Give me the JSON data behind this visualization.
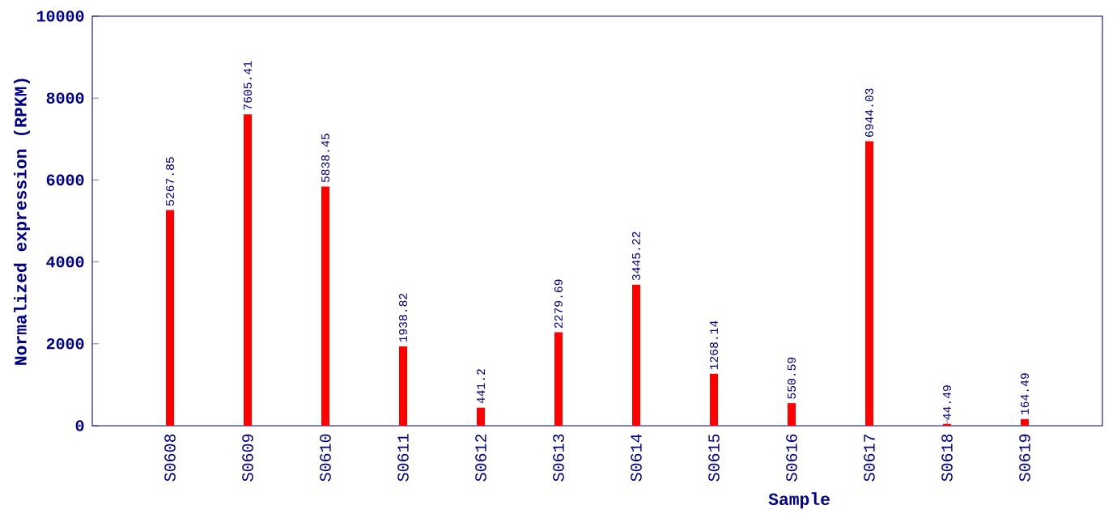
{
  "chart_data": {
    "type": "bar",
    "xlabel": "Sample",
    "ylabel": "Normalized expression (RPKM)",
    "categories": [
      "S0608",
      "S0609",
      "S0610",
      "S0611",
      "S0612",
      "S0613",
      "S0614",
      "S0615",
      "S0616",
      "S0617",
      "S0618",
      "S0619"
    ],
    "values": [
      5267.85,
      7605.41,
      5838.45,
      1938.82,
      441.2,
      2279.69,
      3445.22,
      1268.14,
      550.59,
      6944.03,
      44.49,
      164.49
    ],
    "value_labels": [
      "5267.85",
      "7605.41",
      "5838.45",
      "1938.82",
      "441.2",
      "2279.69",
      "3445.22",
      "1268.14",
      "550.59",
      "6944.03",
      "44.49",
      "164.49"
    ],
    "color": "#ff0000",
    "ylim": [
      0,
      10000
    ],
    "yticks": [
      0,
      2000,
      4000,
      6000,
      8000,
      10000
    ]
  }
}
